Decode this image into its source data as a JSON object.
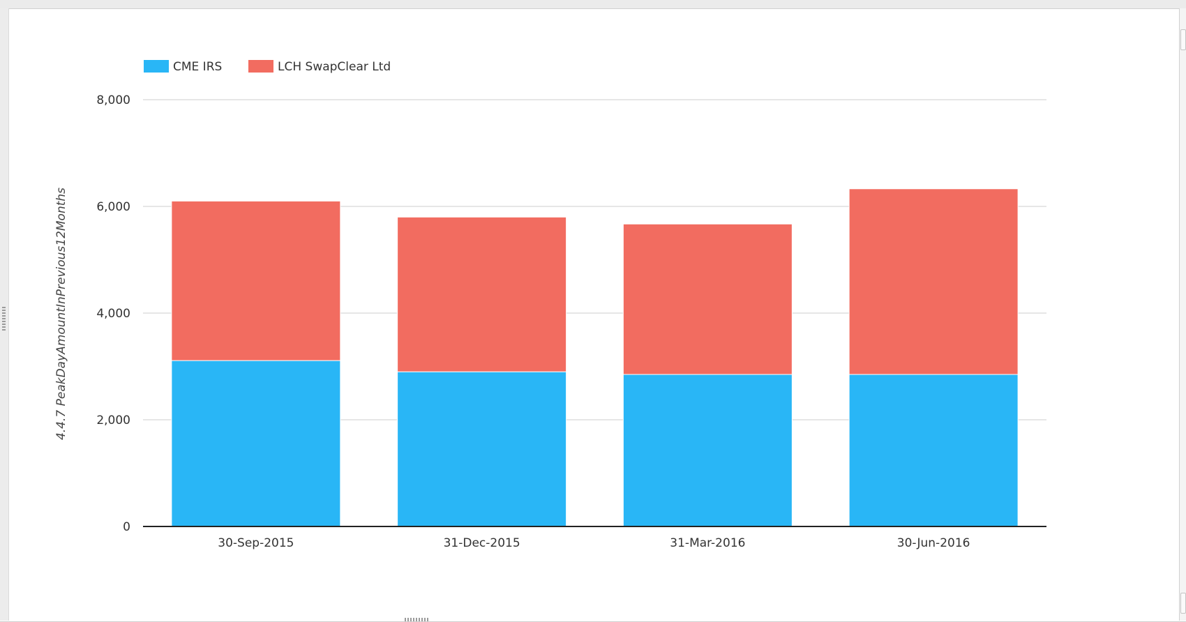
{
  "chart_data": {
    "type": "bar",
    "stacked": true,
    "title": "",
    "xlabel": "",
    "ylabel": "4.4.7 PeakDayAmountInPrevious12Months",
    "categories": [
      "30-Sep-2015",
      "31-Dec-2015",
      "31-Mar-2016",
      "30-Jun-2016"
    ],
    "series": [
      {
        "name": "CME IRS",
        "color": "#29b6f6",
        "values": [
          3110,
          2900,
          2850,
          2850
        ]
      },
      {
        "name": "LCH SwapClear Ltd",
        "color": "#f26c60",
        "values": [
          2990,
          2900,
          2820,
          3480
        ]
      }
    ],
    "ylim": [
      0,
      8000
    ],
    "yticks": [
      0,
      2000,
      4000,
      6000,
      8000
    ],
    "ytick_labels": [
      "0",
      "2,000",
      "4,000",
      "6,000",
      "8,000"
    ],
    "grid": true,
    "legend_position": "top-left"
  }
}
